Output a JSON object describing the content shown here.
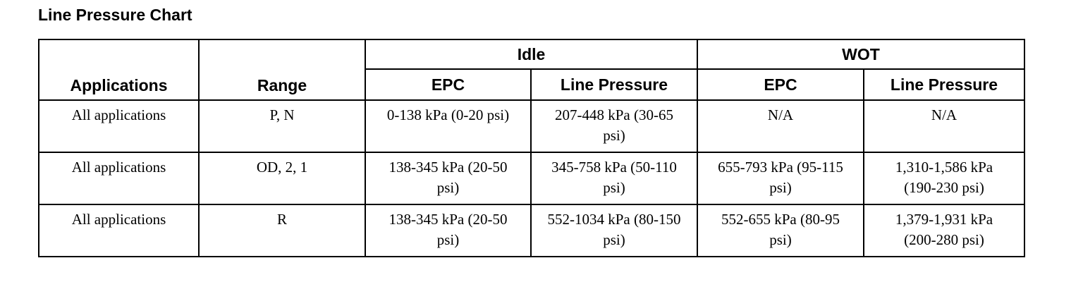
{
  "title": "Line Pressure Chart",
  "table": {
    "header": {
      "applications": "Applications",
      "range": "Range",
      "idle": "Idle",
      "wot": "WOT",
      "sub": [
        "EPC",
        "Line Pressure",
        "EPC",
        "Line Pressure"
      ]
    },
    "rows": [
      [
        "All applications",
        "P, N",
        "0-138 kPa (0-20 psi)",
        "207-448 kPa (30-65 psi)",
        "N/A",
        "N/A"
      ],
      [
        "All applications",
        "OD, 2, 1",
        "138-345 kPa (20-50 psi)",
        "345-758 kPa (50-110 psi)",
        "655-793 kPa (95-115 psi)",
        "1,310-1,586 kPa (190-230 psi)"
      ],
      [
        "All applications",
        "R",
        "138-345 kPa (20-50 psi)",
        "552-1034 kPa (80-150 psi)",
        "552-655 kPa (80-95 psi)",
        "1,379-1,931 kPa (200-280 psi)"
      ]
    ]
  }
}
